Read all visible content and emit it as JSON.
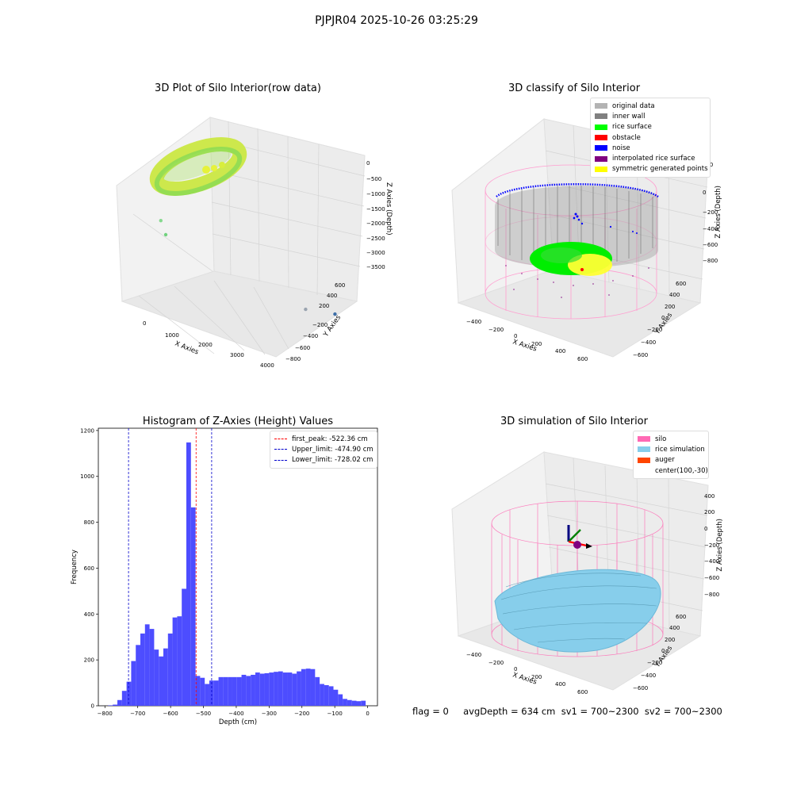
{
  "suptitle": "PJPJR04 2025-10-26 03:25:29",
  "status_text": "flag = 0     avgDepth = 634 cm  sv1 = 700~2300  sv2 = 700~2300",
  "chart_data": [
    {
      "type": "scatter",
      "title": "3D Plot of Silo Interior(row data)",
      "xlabel": "X Axies",
      "ylabel": "Y Axies",
      "zlabel": "Z Axies (Depth)",
      "x_ticks": [
        "0",
        "1000",
        "2000",
        "3000",
        "4000"
      ],
      "y_ticks": [
        "600",
        "400",
        "200",
        "−200",
        "−400",
        "−600",
        "−800"
      ],
      "z_ticks": [
        "0",
        "−500",
        "−1000",
        "−1500",
        "−2000",
        "−2500",
        "−3000",
        "−3500"
      ],
      "outlier_points": [
        {
          "x": 400,
          "y": 100,
          "z": -900,
          "color": "#86d98e"
        },
        {
          "x": 500,
          "y": 100,
          "z": -1300,
          "color": "#70d27e"
        },
        {
          "x": 3200,
          "y": -350,
          "z": -3000,
          "color": "#9aa4b0"
        },
        {
          "x": 3700,
          "y": -650,
          "z": -3300,
          "color": "#3e6fa8"
        }
      ]
    },
    {
      "type": "scatter",
      "title": "3D classify of Silo Interior",
      "xlabel": "X Axies",
      "ylabel": "Y Axies",
      "zlabel": "Z Axies (Depth)",
      "x_ticks": [
        "−400",
        "−200",
        "0",
        "200",
        "400",
        "600"
      ],
      "y_ticks": [
        "600",
        "400",
        "200",
        "0",
        "−200",
        "−400",
        "−600"
      ],
      "z_ticks": [
        "200",
        "0",
        "−200",
        "−400",
        "−600",
        "−800"
      ],
      "legend": [
        {
          "label": "original data",
          "color": "#b3b3b3"
        },
        {
          "label": "inner wall",
          "color": "#808080"
        },
        {
          "label": "rice surface",
          "color": "#00ff00"
        },
        {
          "label": "obstacle",
          "color": "#ff0000"
        },
        {
          "label": "noise",
          "color": "#0000ff"
        },
        {
          "label": "interpolated rice surface",
          "color": "#800080"
        },
        {
          "label": "symmetric generated points",
          "color": "#ffff00"
        }
      ],
      "legend_position": "top-right"
    },
    {
      "type": "bar",
      "title": "Histogram of Z-Axies (Height) Values",
      "xlabel": "Depth (cm)",
      "ylabel": "Frequency",
      "xlim": [
        -820,
        30
      ],
      "ylim": [
        0,
        1210
      ],
      "x_ticks": [
        -800,
        -700,
        -600,
        -500,
        -400,
        -300,
        -200,
        -100,
        0
      ],
      "y_ticks": [
        0,
        200,
        400,
        600,
        800,
        1000,
        1200
      ],
      "bin_edges": [
        -790,
        -776,
        -762,
        -748,
        -734,
        -720,
        -706,
        -692,
        -678,
        -664,
        -650,
        -636,
        -622,
        -608,
        -594,
        -580,
        -566,
        -552,
        -538,
        -524,
        -510,
        -496,
        -482,
        -468,
        -454,
        -440,
        -426,
        -412,
        -398,
        -384,
        -370,
        -356,
        -342,
        -328,
        -314,
        -300,
        -286,
        -272,
        -258,
        -244,
        -230,
        -216,
        -202,
        -188,
        -174,
        -160,
        -146,
        -132,
        -118,
        -104,
        -90,
        -76,
        -62,
        -48,
        -34,
        -20,
        -6
      ],
      "values": [
        2,
        5,
        25,
        65,
        105,
        195,
        265,
        315,
        355,
        335,
        245,
        215,
        250,
        315,
        385,
        390,
        510,
        1148,
        865,
        130,
        122,
        95,
        110,
        110,
        125,
        125,
        125,
        125,
        125,
        135,
        130,
        135,
        145,
        140,
        142,
        145,
        148,
        150,
        145,
        145,
        140,
        150,
        160,
        162,
        160,
        125,
        95,
        90,
        85,
        70,
        50,
        30,
        25,
        22,
        20,
        22
      ],
      "bar_color": "#4d4dff",
      "vlines": [
        {
          "label": "first_peak: -522.36 cm",
          "x": -522.36,
          "color": "#ff0000"
        },
        {
          "label": "Upper_limit: -474.90 cm",
          "x": -474.9,
          "color": "#0000cc"
        },
        {
          "label": "Lower_limit: -728.02 cm",
          "x": -728.02,
          "color": "#0000cc"
        }
      ],
      "legend_position": "top-right"
    },
    {
      "type": "area",
      "title": "3D simulation of Silo Interior",
      "xlabel": "X Axies",
      "ylabel": "Y Axies",
      "zlabel": "Z Axies (Depth)",
      "x_ticks": [
        "−400",
        "−200",
        "0",
        "200",
        "400",
        "600"
      ],
      "y_ticks": [
        "600",
        "400",
        "200",
        "0",
        "−200",
        "−400",
        "−600"
      ],
      "z_ticks": [
        "400",
        "200",
        "0",
        "−200",
        "−400",
        "−600",
        "−800"
      ],
      "legend": [
        {
          "label": "silo",
          "color": "#ff69b4"
        },
        {
          "label": "rice simulation",
          "color": "#87ceeb"
        },
        {
          "label": "auger",
          "color": "#ff4500"
        },
        {
          "label": "center(100,-30)",
          "color": ""
        }
      ],
      "legend_position": "top-right"
    }
  ]
}
